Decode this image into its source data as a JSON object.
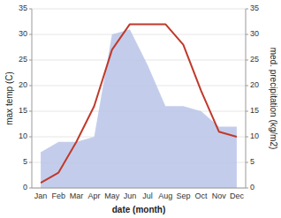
{
  "chart_data": {
    "type": "line",
    "xlabel": "date (month)",
    "ylabel": "max temp (C)",
    "y2label": "med. precipitation (kg/m2)",
    "categories": [
      "Jan",
      "Feb",
      "Mar",
      "Apr",
      "May",
      "Jun",
      "Jul",
      "Aug",
      "Sep",
      "Oct",
      "Nov",
      "Dec"
    ],
    "series": [
      {
        "type": "area",
        "axis": "y2",
        "color": "#b8c4e8",
        "values": [
          7,
          9,
          9,
          10,
          30,
          31,
          24,
          16,
          16,
          15,
          12,
          12
        ]
      },
      {
        "type": "line",
        "color": "#c0392b",
        "values": [
          1,
          3,
          9,
          16,
          27,
          32,
          32,
          32,
          28,
          19,
          11,
          10
        ]
      }
    ],
    "ylim": [
      0,
      35
    ],
    "yticks": [
      0,
      5,
      10,
      15,
      20,
      25,
      30,
      35
    ],
    "y2lim": [
      0,
      35
    ],
    "y2ticks": [
      0,
      5,
      10,
      15,
      20,
      25,
      30,
      35
    ],
    "grid": true
  }
}
